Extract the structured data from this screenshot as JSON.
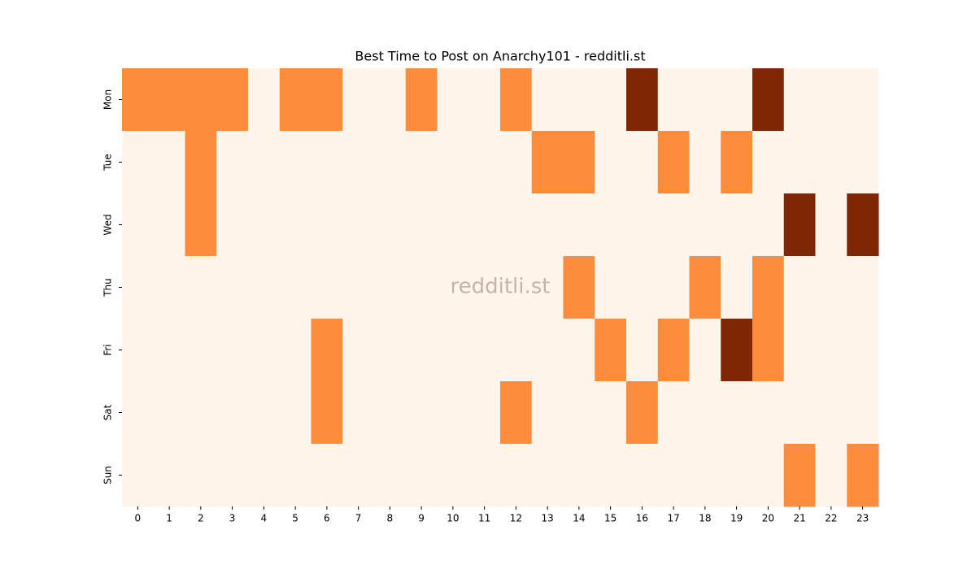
{
  "chart_data": {
    "type": "heatmap",
    "title": "Best Time to Post on Anarchy101 - redditli.st",
    "watermark": "redditli.st",
    "x": [
      0,
      1,
      2,
      3,
      4,
      5,
      6,
      7,
      8,
      9,
      10,
      11,
      12,
      13,
      14,
      15,
      16,
      17,
      18,
      19,
      20,
      21,
      22,
      23
    ],
    "y": [
      "Mon",
      "Tue",
      "Wed",
      "Thu",
      "Fri",
      "Sat",
      "Sun"
    ],
    "values": [
      [
        1,
        1,
        1,
        1,
        0,
        1,
        1,
        0,
        0,
        1,
        0,
        0,
        1,
        0,
        0,
        0,
        2,
        0,
        0,
        0,
        2,
        0,
        0,
        0
      ],
      [
        0,
        0,
        1,
        0,
        0,
        0,
        0,
        0,
        0,
        0,
        0,
        0,
        0,
        1,
        1,
        0,
        0,
        1,
        0,
        1,
        0,
        0,
        0,
        0
      ],
      [
        0,
        0,
        1,
        0,
        0,
        0,
        0,
        0,
        0,
        0,
        0,
        0,
        0,
        0,
        0,
        0,
        0,
        0,
        0,
        0,
        0,
        2,
        0,
        2
      ],
      [
        0,
        0,
        0,
        0,
        0,
        0,
        0,
        0,
        0,
        0,
        0,
        0,
        0,
        0,
        1,
        0,
        0,
        0,
        1,
        0,
        1,
        0,
        0,
        0
      ],
      [
        0,
        0,
        0,
        0,
        0,
        0,
        1,
        0,
        0,
        0,
        0,
        0,
        0,
        0,
        0,
        1,
        0,
        1,
        0,
        2,
        1,
        0,
        0,
        0
      ],
      [
        0,
        0,
        0,
        0,
        0,
        0,
        1,
        0,
        0,
        0,
        0,
        0,
        1,
        0,
        0,
        0,
        1,
        0,
        0,
        0,
        0,
        0,
        0,
        0
      ],
      [
        0,
        0,
        0,
        0,
        0,
        0,
        0,
        0,
        0,
        0,
        0,
        0,
        0,
        0,
        0,
        0,
        0,
        0,
        0,
        0,
        0,
        1,
        0,
        1
      ]
    ],
    "color_scale": {
      "min": 0,
      "max": 2,
      "colors": [
        "#fff5eb",
        "#fd8d3c",
        "#7f2704"
      ]
    }
  }
}
